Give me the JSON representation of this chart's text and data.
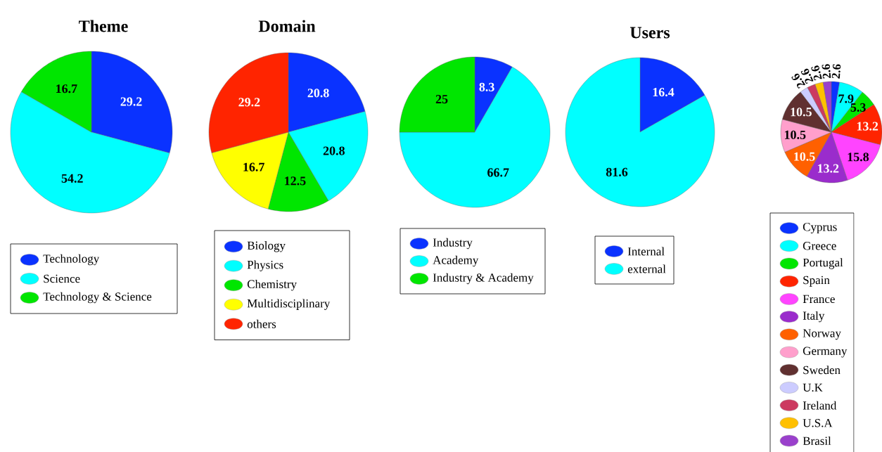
{
  "chart_data": [
    {
      "type": "pie",
      "title": "Theme",
      "categories": [
        "Technology",
        "Science",
        "Technology & Science"
      ],
      "values": [
        29.2,
        54.2,
        16.7
      ],
      "colors": [
        "#0a32ff",
        "#00ffff",
        "#00e600"
      ],
      "data_labels": true,
      "legend": "bottom"
    },
    {
      "type": "pie",
      "title": "Domain",
      "categories": [
        "Biology",
        "Physics",
        "Chemistry",
        "Multidisciplinary",
        "others"
      ],
      "values": [
        20.8,
        20.8,
        12.5,
        16.7,
        29.2
      ],
      "colors": [
        "#0a32ff",
        "#00ffff",
        "#00e600",
        "#ffff00",
        "#ff2400"
      ],
      "data_labels": true,
      "legend": "bottom"
    },
    {
      "type": "pie",
      "categories": [
        "Industry",
        "Academy",
        "Industry & Academy"
      ],
      "values": [
        8.3,
        66.7,
        25
      ],
      "colors": [
        "#0a32ff",
        "#00ffff",
        "#00e600"
      ],
      "data_labels": true,
      "legend": "bottom"
    },
    {
      "type": "pie",
      "title": "Users",
      "categories": [
        "Internal",
        "external"
      ],
      "values": [
        16.4,
        81.6
      ],
      "colors": [
        "#0a32ff",
        "#00ffff"
      ],
      "data_labels": true,
      "legend": "bottom"
    },
    {
      "type": "pie",
      "categories": [
        "Cyprus",
        "Greece",
        "Portugal",
        "Spain",
        "France",
        "Italy",
        "Norway",
        "Germany",
        "Sweden",
        "U.K",
        "Ireland",
        "U.S.A",
        "Brasil"
      ],
      "values": [
        2.6,
        7.9,
        5.3,
        13.2,
        15.8,
        13.2,
        10.5,
        10.5,
        10.5,
        2.6,
        2.6,
        2.6,
        2.6
      ],
      "colors": [
        "#0a32ff",
        "#00ffff",
        "#00e600",
        "#ff2400",
        "#ff44ff",
        "#9a2ccc",
        "#ff6000",
        "#ff9fcc",
        "#603030",
        "#ccccff",
        "#cc3a60",
        "#ffc000",
        "#9a40cc"
      ],
      "data_labels": true,
      "legend": "bottom"
    }
  ]
}
